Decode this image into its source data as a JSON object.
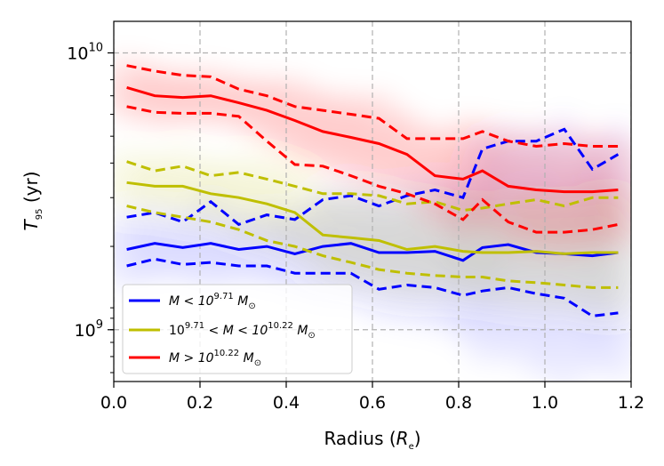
{
  "chart_data": {
    "type": "line",
    "xlabel": "Radius",
    "xlabel_sub": "e",
    "ylabel": "T",
    "ylabel_sub": "95",
    "ylabel_unit": "(yr)",
    "xlim": [
      0.0,
      1.2
    ],
    "ylim": [
      650000000,
      13000000000
    ],
    "yscale": "log",
    "grid": true,
    "legend_position": "lower-left",
    "x_ticks": [
      "0.0",
      "0.2",
      "0.4",
      "0.6",
      "0.8",
      "1.0",
      "1.2"
    ],
    "y_ticks": [
      {
        "value": 1000000000,
        "base": "10",
        "exp": "9"
      },
      {
        "value": 10000000000,
        "base": "10",
        "exp": "10"
      }
    ],
    "x": [
      0.03,
      0.095,
      0.16,
      0.225,
      0.29,
      0.355,
      0.42,
      0.485,
      0.55,
      0.615,
      0.68,
      0.745,
      0.81,
      0.855,
      0.915,
      0.98,
      1.045,
      1.11,
      1.17
    ],
    "series": [
      {
        "name": "low-mass",
        "legend": {
          "pre": "M < 10",
          "sup1": "9.71",
          "mid": " M",
          "sub1": "⊙"
        },
        "color": "#0000ff",
        "median": [
          1950000000.0,
          2050000000.0,
          1980000000.0,
          2050000000.0,
          1950000000.0,
          2000000000.0,
          1880000000.0,
          2000000000.0,
          2050000000.0,
          1900000000.0,
          1900000000.0,
          1920000000.0,
          1780000000.0,
          1980000000.0,
          2030000000.0,
          1900000000.0,
          1880000000.0,
          1850000000.0,
          1900000000.0
        ],
        "lower": [
          1700000000.0,
          1800000000.0,
          1720000000.0,
          1750000000.0,
          1700000000.0,
          1700000000.0,
          1600000000.0,
          1600000000.0,
          1600000000.0,
          1400000000.0,
          1450000000.0,
          1420000000.0,
          1330000000.0,
          1380000000.0,
          1420000000.0,
          1350000000.0,
          1300000000.0,
          1120000000.0,
          1150000000.0
        ],
        "upper": [
          2550000000.0,
          2650000000.0,
          2450000000.0,
          2900000000.0,
          2400000000.0,
          2600000000.0,
          2500000000.0,
          2950000000.0,
          3050000000.0,
          2800000000.0,
          3050000000.0,
          3200000000.0,
          3000000000.0,
          4500000000.0,
          4800000000.0,
          4800000000.0,
          5300000000.0,
          3800000000.0,
          4300000000.0
        ]
      },
      {
        "name": "mid-mass",
        "legend": {
          "pre": "10",
          "sup1": "9.71",
          "mid": " < M < 10",
          "sup2": "10.22",
          "post": " M",
          "sub1": "⊙"
        },
        "color": "#bfbf00",
        "median": [
          3400000000.0,
          3300000000.0,
          3300000000.0,
          3100000000.0,
          3000000000.0,
          2850000000.0,
          2650000000.0,
          2200000000.0,
          2150000000.0,
          2100000000.0,
          1950000000.0,
          2000000000.0,
          1920000000.0,
          1900000000.0,
          1900000000.0,
          1920000000.0,
          1880000000.0,
          1900000000.0,
          1900000000.0
        ],
        "lower": [
          2800000000.0,
          2650000000.0,
          2550000000.0,
          2450000000.0,
          2300000000.0,
          2100000000.0,
          2000000000.0,
          1850000000.0,
          1750000000.0,
          1650000000.0,
          1600000000.0,
          1570000000.0,
          1550000000.0,
          1550000000.0,
          1500000000.0,
          1480000000.0,
          1450000000.0,
          1420000000.0,
          1420000000.0
        ],
        "upper": [
          4050000000.0,
          3750000000.0,
          3900000000.0,
          3600000000.0,
          3700000000.0,
          3500000000.0,
          3300000000.0,
          3100000000.0,
          3100000000.0,
          3050000000.0,
          2850000000.0,
          2900000000.0,
          2700000000.0,
          2750000000.0,
          2850000000.0,
          2950000000.0,
          2800000000.0,
          3000000000.0,
          3000000000.0
        ],
        "median_label": "",
        "lower_label": ""
      },
      {
        "name": "high-mass",
        "legend": {
          "pre": "M > 10",
          "sup1": "10.22",
          "mid": " M",
          "sub1": "⊙"
        },
        "color": "#ff0000",
        "median": [
          7500000000.0,
          7000000000.0,
          6900000000.0,
          7000000000.0,
          6600000000.0,
          6200000000.0,
          5700000000.0,
          5200000000.0,
          4950000000.0,
          4700000000.0,
          4300000000.0,
          3600000000.0,
          3500000000.0,
          3750000000.0,
          3300000000.0,
          3200000000.0,
          3150000000.0,
          3150000000.0,
          3200000000.0
        ],
        "lower": [
          6400000000.0,
          6100000000.0,
          6050000000.0,
          6050000000.0,
          5900000000.0,
          4800000000.0,
          3950000000.0,
          3900000000.0,
          3600000000.0,
          3300000000.0,
          3100000000.0,
          2850000000.0,
          2500000000.0,
          2950000000.0,
          2450000000.0,
          2250000000.0,
          2250000000.0,
          2300000000.0,
          2400000000.0
        ],
        "upper": [
          9000000000.0,
          8600000000.0,
          8300000000.0,
          8200000000.0,
          7400000000.0,
          7000000000.0,
          6400000000.0,
          6200000000.0,
          6000000000.0,
          5800000000.0,
          4900000000.0,
          4900000000.0,
          4900000000.0,
          5200000000.0,
          4800000000.0,
          4600000000.0,
          4700000000.0,
          4600000000.0,
          4600000000.0
        ]
      }
    ]
  }
}
